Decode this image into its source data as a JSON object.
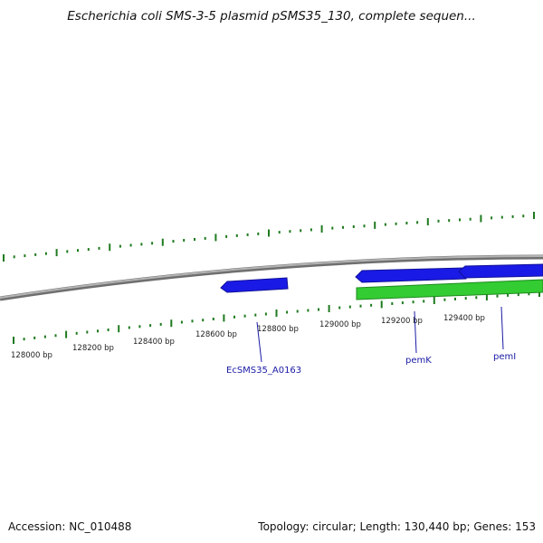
{
  "title": "Escherichia coli SMS-3-5 plasmid pSMS35_130, complete sequen...",
  "footer": {
    "accession": "Accession: NC_010488",
    "summary": "Topology: circular; Length: 130,440 bp; Genes: 153"
  },
  "colors": {
    "backbone": "#8c8c8c",
    "tick": "#1f7a1f",
    "feature_blue": "#1a1ae6",
    "feature_green": "#33cc33",
    "label": "#1a1aa6"
  },
  "ruler_labels": [
    {
      "text": "128000 bp"
    },
    {
      "text": "128200 bp"
    },
    {
      "text": "128400 bp"
    },
    {
      "text": "128600 bp"
    },
    {
      "text": "128800 bp"
    },
    {
      "text": "129000 bp"
    },
    {
      "text": "129200 bp"
    },
    {
      "text": "129400 bp"
    }
  ],
  "gene_labels": [
    {
      "text": "EcSMS35_A0163"
    },
    {
      "text": "pemK"
    },
    {
      "text": "pemI"
    }
  ]
}
